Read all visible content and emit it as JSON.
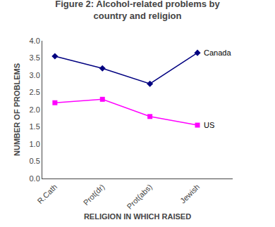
{
  "chart_data": {
    "type": "line",
    "title": "Figure 2: Alcohol-related problems by\ncountry and religion",
    "xlabel": "RELIGION IN WHICH RAISED",
    "ylabel": "NUMBER OF PROBLEMS",
    "categories": [
      "R.Cath",
      "Prot(dr)",
      "Prot(abs)",
      "Jewish"
    ],
    "series": [
      {
        "name": "Canada",
        "color": "#000080",
        "marker": "diamond",
        "values": [
          3.55,
          3.2,
          2.75,
          3.65
        ]
      },
      {
        "name": "US",
        "color": "#FF00FF",
        "marker": "square",
        "values": [
          2.2,
          2.3,
          1.8,
          1.55
        ]
      }
    ],
    "ylim": [
      0,
      4
    ],
    "yticks": [
      {
        "value": 0,
        "label": "0.0"
      },
      0.5,
      {
        "value": 1,
        "label": "1.0"
      },
      1.5,
      {
        "value": 2,
        "label": "2.0"
      },
      2.5,
      {
        "value": 3,
        "label": "3.0"
      },
      3.5,
      {
        "value": 4,
        "label": "4.0"
      }
    ],
    "grid": false
  }
}
